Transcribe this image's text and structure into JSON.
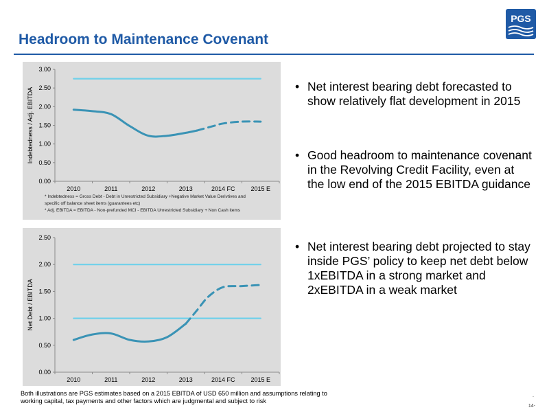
{
  "header": {
    "title": "Headroom to Maintenance Covenant",
    "logo_text": "PGS"
  },
  "colors": {
    "title_blue": "#1f5aa6",
    "light_blue_line": "#6fd0ea",
    "teal_line": "#3a93b5",
    "chart_bg": "#dcdcdc"
  },
  "chart1_footnotes": [
    "* Indebtedness = Gross Debt - Debt in Unrestricted Subsidiary +Negative Market Value Derivtives and",
    "specific off balance sheet items (guarantees etc)",
    "* Adj. EBITDA = EBITDA - Non-prefunded MCI - EBITDA Unrestricted Subsidiary + Non Cash items"
  ],
  "chart_data": [
    {
      "type": "line",
      "xlabel": "",
      "ylabel": "Indebtedness / Adj. EBITDA",
      "categories": [
        "2010",
        "2011",
        "2012",
        "2013",
        "2014 FC",
        "2015 E"
      ],
      "yticks": [
        "0.00",
        "0.50",
        "1.00",
        "1.50",
        "2.00",
        "2.50",
        "3.00"
      ],
      "ylim": [
        0,
        3
      ],
      "grid": false,
      "series": [
        {
          "name": "",
          "style": "solid",
          "color": "#6fd0ea",
          "x": [
            0,
            5
          ],
          "values": [
            2.75,
            2.75
          ]
        },
        {
          "name": "",
          "style": "solid",
          "color": "#3a93b5",
          "x": [
            0,
            0.5,
            1,
            1.5,
            2,
            2.5,
            3,
            3.3
          ],
          "values": [
            1.92,
            1.88,
            1.8,
            1.48,
            1.22,
            1.22,
            1.3,
            1.36
          ]
        },
        {
          "name": "",
          "style": "dashed",
          "color": "#3a93b5",
          "x": [
            3.3,
            3.7,
            4,
            4.5,
            5
          ],
          "values": [
            1.36,
            1.47,
            1.55,
            1.6,
            1.6
          ]
        }
      ]
    },
    {
      "type": "line",
      "xlabel": "",
      "ylabel": "Net Debt / EBITDA",
      "categories": [
        "2010",
        "2011",
        "2012",
        "2013",
        "2014 FC",
        "2015 E"
      ],
      "yticks": [
        "0.00",
        "0.50",
        "1.00",
        "1.50",
        "2.00",
        "2.50"
      ],
      "ylim": [
        0,
        2.5
      ],
      "grid": false,
      "series": [
        {
          "name": "",
          "style": "solid",
          "color": "#6fd0ea",
          "x": [
            0,
            5
          ],
          "values": [
            2.0,
            2.0
          ]
        },
        {
          "name": "",
          "style": "solid",
          "color": "#6fd0ea",
          "x": [
            0,
            5
          ],
          "values": [
            1.0,
            1.0
          ]
        },
        {
          "name": "",
          "style": "solid",
          "color": "#3a93b5",
          "x": [
            0,
            0.5,
            1,
            1.5,
            2,
            2.5,
            3
          ],
          "values": [
            0.6,
            0.7,
            0.72,
            0.6,
            0.57,
            0.65,
            0.9
          ]
        },
        {
          "name": "",
          "style": "dashed",
          "color": "#3a93b5",
          "x": [
            3,
            3.3,
            3.6,
            4,
            4.5,
            5
          ],
          "values": [
            0.9,
            1.15,
            1.4,
            1.58,
            1.6,
            1.62
          ]
        }
      ]
    }
  ],
  "bullets": [
    {
      "symbol": "•",
      "text": "Net interest bearing debt forecasted to show relatively flat development in 2015"
    },
    {
      "symbol": "•",
      "text": "Good headroom to maintenance covenant in the Revolving Credit Facility, even at the low end of the 2015 EBITDA guidance"
    },
    {
      "symbol": "•",
      "text": "Net interest bearing debt projected to stay inside PGS’ policy to keep net debt below 1xEBITDA in a strong market and 2xEBITDA in a weak market"
    }
  ],
  "footer": {
    "note": "Both illustrations are PGS estimates based on a 2015 EBITDA of USD 650 million and assumptions relating to working capital, tax payments and other factors which are judgmental and subject to risk",
    "page_number": "14-",
    "dot": "-"
  }
}
